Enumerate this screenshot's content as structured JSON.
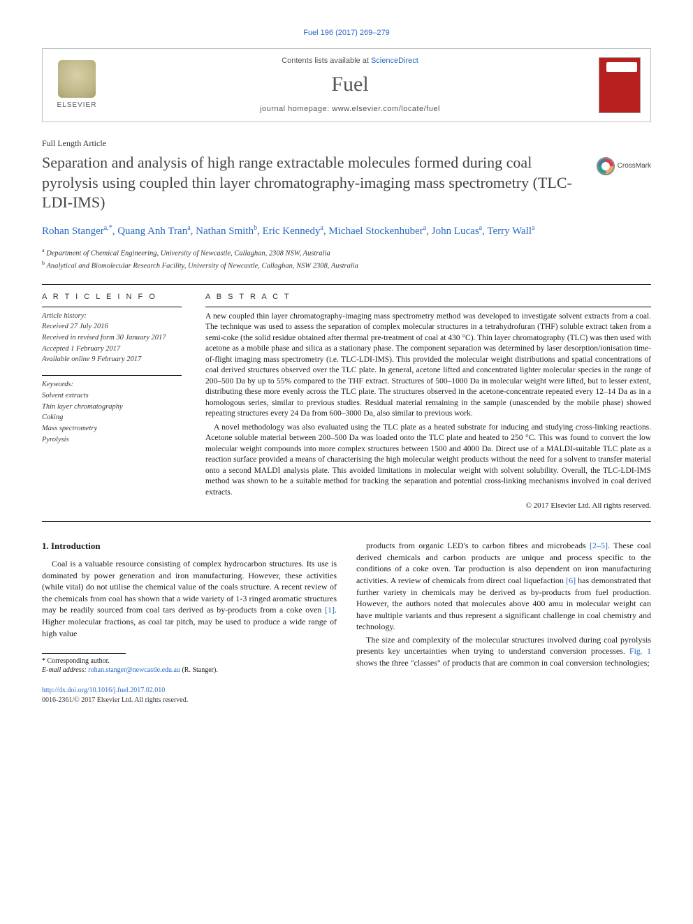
{
  "citation": "Fuel 196 (2017) 269–279",
  "masthead": {
    "contents_prefix": "Contents lists available at ",
    "contents_link": "ScienceDirect",
    "journal": "Fuel",
    "homepage_label": "journal homepage: ",
    "homepage_url": "www.elsevier.com/locate/fuel",
    "publisher": "ELSEVIER",
    "cover_label": "FUEL"
  },
  "article": {
    "type": "Full Length Article",
    "title": "Separation and analysis of high range extractable molecules formed during coal pyrolysis using coupled thin layer chromatography-imaging mass spectrometry (TLC-LDI-IMS)",
    "crossmark": "CrossMark"
  },
  "authors_html": "Rohan Stanger<span class='sup'>a,</span><span class='sup star'>*</span>, Quang Anh Tran<span class='sup'>a</span>, Nathan Smith<span class='sup'>b</span>, Eric Kennedy<span class='sup'>a</span>, Michael Stockenhuber<span class='sup'>a</span>, John Lucas<span class='sup'>a</span>, Terry Wall<span class='sup'>a</span>",
  "affiliations": [
    {
      "key": "a",
      "text": "Department of Chemical Engineering, University of Newcastle, Callaghan, 2308 NSW, Australia"
    },
    {
      "key": "b",
      "text": "Analytical and Biomolecular Research Facility, University of Newcastle, Callaghan, NSW 2308, Australia"
    }
  ],
  "info": {
    "head": "A R T I C L E   I N F O",
    "history_label": "Article history:",
    "received": "Received 27 July 2016",
    "revised": "Received in revised form 30 January 2017",
    "accepted": "Accepted 1 February 2017",
    "online": "Available online 9 February 2017",
    "keywords_label": "Keywords:",
    "keywords": [
      "Solvent extracts",
      "Thin layer chromatography",
      "Coking",
      "Mass spectrometry",
      "Pyrolysis"
    ]
  },
  "abstract": {
    "head": "A B S T R A C T",
    "p1": "A new coupled thin layer chromatography-imaging mass spectrometry method was developed to investigate solvent extracts from a coal. The technique was used to assess the separation of complex molecular structures in a tetrahydrofuran (THF) soluble extract taken from a semi-coke (the solid residue obtained after thermal pre-treatment of coal at 430 °C). Thin layer chromatography (TLC) was then used with acetone as a mobile phase and silica as a stationary phase. The component separation was determined by laser desorption/ionisation time-of-flight imaging mass spectrometry (i.e. TLC-LDI-IMS). This provided the molecular weight distributions and spatial concentrations of coal derived structures observed over the TLC plate. In general, acetone lifted and concentrated lighter molecular species in the range of 200–500 Da by up to 55% compared to the THF extract. Structures of 500–1000 Da in molecular weight were lifted, but to lesser extent, distributing these more evenly across the TLC plate. The structures observed in the acetone-concentrate repeated every 12–14 Da as in a homologous series, similar to previous studies. Residual material remaining in the sample (unascended by the mobile phase) showed repeating structures every 24 Da from 600–3000 Da, also similar to previous work.",
    "p2": "A novel methodology was also evaluated using the TLC plate as a heated substrate for inducing and studying cross-linking reactions. Acetone soluble material between 200–500 Da was loaded onto the TLC plate and heated to 250 °C. This was found to convert the low molecular weight compounds into more complex structures between 1500 and 4000 Da. Direct use of a MALDI-suitable TLC plate as a reaction surface provided a means of characterising the high molecular weight products without the need for a solvent to transfer material onto a second MALDI analysis plate. This avoided limitations in molecular weight with solvent solubility. Overall, the TLC-LDI-IMS method was shown to be a suitable method for tracking the separation and potential cross-linking mechanisms involved in coal derived extracts.",
    "copyright": "© 2017 Elsevier Ltd. All rights reserved."
  },
  "body": {
    "section_num": "1.",
    "section_title": "Introduction",
    "col1_p1": "Coal is a valuable resource consisting of complex hydrocarbon structures. Its use is dominated by power generation and iron manufacturing. However, these activities (while vital) do not utilise the chemical value of the coals structure. A recent review of the chemicals from coal has shown that a wide variety of 1-3 ringed aromatic structures may be readily sourced from coal tars derived as by-products from a coke oven [1]. Higher molecular fractions, as coal tar pitch, may be used to produce a wide range of high value",
    "col2_p1": "products from organic LED's to carbon fibres and microbeads [2–5]. These coal derived chemicals and carbon products are unique and process specific to the conditions of a coke oven. Tar production is also dependent on iron manufacturing activities. A review of chemicals from direct coal liquefaction [6] has demonstrated that further variety in chemicals may be derived as by-products from fuel production. However, the authors noted that molecules above 400 amu in molecular weight can have multiple variants and thus represent a significant challenge in coal chemistry and technology.",
    "col2_p2": "The size and complexity of the molecular structures involved during coal pyrolysis presents key uncertainties when trying to understand conversion processes. Fig. 1 shows the three \"classes\" of products that are common in coal conversion technologies;",
    "refs": {
      "r1": "[1]",
      "r25": "[2–5]",
      "r6": "[6]",
      "fig1": "Fig. 1"
    }
  },
  "footnotes": {
    "corr_label": "Corresponding author.",
    "email_label": "E-mail address:",
    "email": "rohan.stanger@newcastle.edu.au",
    "email_who": "(R. Stanger)."
  },
  "doi": {
    "url": "http://dx.doi.org/10.1016/j.fuel.2017.02.010",
    "issn": "0016-2361/© 2017 Elsevier Ltd. All rights reserved."
  },
  "colors": {
    "link": "#2969c4",
    "text": "#1a1a1a",
    "muted": "#555555",
    "rule": "#000000",
    "cover_bg": "#b82020"
  }
}
